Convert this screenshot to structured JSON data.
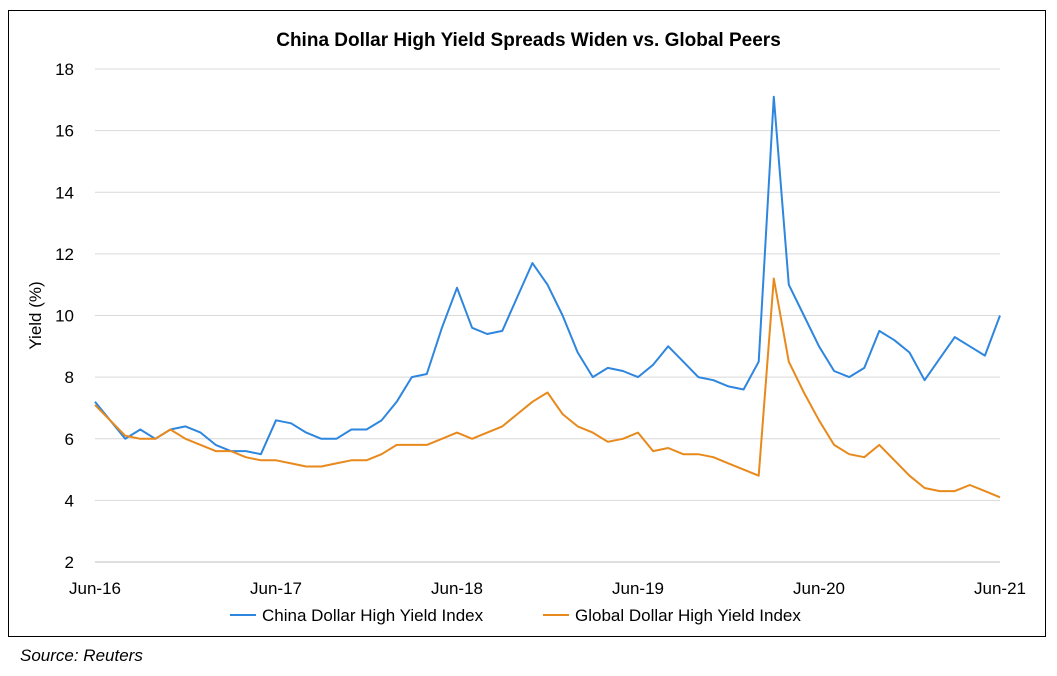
{
  "chart_data": {
    "type": "line",
    "title": "China Dollar High Yield Spreads Widen vs. Global Peers",
    "xlabel": "",
    "ylabel": "Yield (%)",
    "ylim": [
      2,
      18
    ],
    "yticks": [
      2,
      4,
      6,
      8,
      10,
      12,
      14,
      16,
      18
    ],
    "xlim": [
      "2016-06",
      "2021-06"
    ],
    "xtick_labels": [
      "Jun-16",
      "Jun-17",
      "Jun-18",
      "Jun-19",
      "Jun-20",
      "Jun-21"
    ],
    "grid": "horizontal",
    "legend": "bottom",
    "series": [
      {
        "name": "China Dollar High Yield Index",
        "color": "#2e86de",
        "points": [
          [
            "2016-06",
            7.2
          ],
          [
            "2016-07",
            6.6
          ],
          [
            "2016-08",
            6.0
          ],
          [
            "2016-09",
            6.3
          ],
          [
            "2016-10",
            6.0
          ],
          [
            "2016-11",
            6.3
          ],
          [
            "2016-12",
            6.4
          ],
          [
            "2017-01",
            6.2
          ],
          [
            "2017-02",
            5.8
          ],
          [
            "2017-03",
            5.6
          ],
          [
            "2017-04",
            5.6
          ],
          [
            "2017-05",
            5.5
          ],
          [
            "2017-06",
            6.6
          ],
          [
            "2017-07",
            6.5
          ],
          [
            "2017-08",
            6.2
          ],
          [
            "2017-09",
            6.0
          ],
          [
            "2017-10",
            6.0
          ],
          [
            "2017-11",
            6.3
          ],
          [
            "2017-12",
            6.3
          ],
          [
            "2018-01",
            6.6
          ],
          [
            "2018-02",
            7.2
          ],
          [
            "2018-03",
            8.0
          ],
          [
            "2018-04",
            8.1
          ],
          [
            "2018-05",
            9.6
          ],
          [
            "2018-06",
            10.9
          ],
          [
            "2018-07",
            9.6
          ],
          [
            "2018-08",
            9.4
          ],
          [
            "2018-09",
            9.5
          ],
          [
            "2018-10",
            10.6
          ],
          [
            "2018-11",
            11.7
          ],
          [
            "2018-12",
            11.0
          ],
          [
            "2019-01",
            10.0
          ],
          [
            "2019-02",
            8.8
          ],
          [
            "2019-03",
            8.0
          ],
          [
            "2019-04",
            8.3
          ],
          [
            "2019-05",
            8.2
          ],
          [
            "2019-06",
            8.0
          ],
          [
            "2019-07",
            8.4
          ],
          [
            "2019-08",
            9.0
          ],
          [
            "2019-09",
            8.5
          ],
          [
            "2019-10",
            8.0
          ],
          [
            "2019-11",
            7.9
          ],
          [
            "2019-12",
            7.7
          ],
          [
            "2020-01",
            7.6
          ],
          [
            "2020-02",
            8.5
          ],
          [
            "2020-03",
            17.1
          ],
          [
            "2020-04",
            11.0
          ],
          [
            "2020-05",
            10.0
          ],
          [
            "2020-06",
            9.0
          ],
          [
            "2020-07",
            8.2
          ],
          [
            "2020-08",
            8.0
          ],
          [
            "2020-09",
            8.3
          ],
          [
            "2020-10",
            9.5
          ],
          [
            "2020-11",
            9.2
          ],
          [
            "2020-12",
            8.8
          ],
          [
            "2021-01",
            7.9
          ],
          [
            "2021-02",
            8.6
          ],
          [
            "2021-03",
            9.3
          ],
          [
            "2021-04",
            9.0
          ],
          [
            "2021-05",
            8.7
          ],
          [
            "2021-06",
            10.0
          ]
        ]
      },
      {
        "name": "Global Dollar High Yield Index",
        "color": "#e8891c",
        "points": [
          [
            "2016-06",
            7.1
          ],
          [
            "2016-07",
            6.6
          ],
          [
            "2016-08",
            6.1
          ],
          [
            "2016-09",
            6.0
          ],
          [
            "2016-10",
            6.0
          ],
          [
            "2016-11",
            6.3
          ],
          [
            "2016-12",
            6.0
          ],
          [
            "2017-01",
            5.8
          ],
          [
            "2017-02",
            5.6
          ],
          [
            "2017-03",
            5.6
          ],
          [
            "2017-04",
            5.4
          ],
          [
            "2017-05",
            5.3
          ],
          [
            "2017-06",
            5.3
          ],
          [
            "2017-07",
            5.2
          ],
          [
            "2017-08",
            5.1
          ],
          [
            "2017-09",
            5.1
          ],
          [
            "2017-10",
            5.2
          ],
          [
            "2017-11",
            5.3
          ],
          [
            "2017-12",
            5.3
          ],
          [
            "2018-01",
            5.5
          ],
          [
            "2018-02",
            5.8
          ],
          [
            "2018-03",
            5.8
          ],
          [
            "2018-04",
            5.8
          ],
          [
            "2018-05",
            6.0
          ],
          [
            "2018-06",
            6.2
          ],
          [
            "2018-07",
            6.0
          ],
          [
            "2018-08",
            6.2
          ],
          [
            "2018-09",
            6.4
          ],
          [
            "2018-10",
            6.8
          ],
          [
            "2018-11",
            7.2
          ],
          [
            "2018-12",
            7.5
          ],
          [
            "2019-01",
            6.8
          ],
          [
            "2019-02",
            6.4
          ],
          [
            "2019-03",
            6.2
          ],
          [
            "2019-04",
            5.9
          ],
          [
            "2019-05",
            6.0
          ],
          [
            "2019-06",
            6.2
          ],
          [
            "2019-07",
            5.6
          ],
          [
            "2019-08",
            5.7
          ],
          [
            "2019-09",
            5.5
          ],
          [
            "2019-10",
            5.5
          ],
          [
            "2019-11",
            5.4
          ],
          [
            "2019-12",
            5.2
          ],
          [
            "2020-01",
            5.0
          ],
          [
            "2020-02",
            4.8
          ],
          [
            "2020-03",
            11.2
          ],
          [
            "2020-04",
            8.5
          ],
          [
            "2020-05",
            7.5
          ],
          [
            "2020-06",
            6.6
          ],
          [
            "2020-07",
            5.8
          ],
          [
            "2020-08",
            5.5
          ],
          [
            "2020-09",
            5.4
          ],
          [
            "2020-10",
            5.8
          ],
          [
            "2020-11",
            5.3
          ],
          [
            "2020-12",
            4.8
          ],
          [
            "2021-01",
            4.4
          ],
          [
            "2021-02",
            4.3
          ],
          [
            "2021-03",
            4.3
          ],
          [
            "2021-04",
            4.5
          ],
          [
            "2021-05",
            4.3
          ],
          [
            "2021-06",
            4.1
          ]
        ]
      }
    ]
  },
  "footer": {
    "source": "Source: Reuters"
  }
}
